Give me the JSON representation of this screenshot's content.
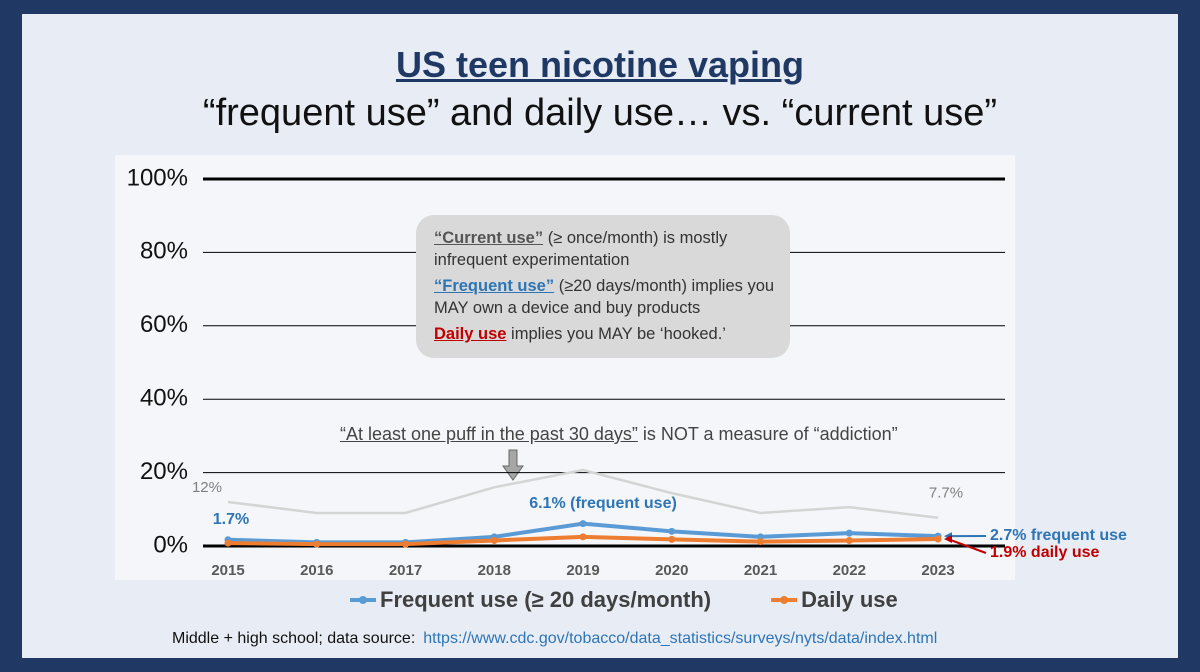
{
  "chart_data": {
    "type": "line",
    "title": "US teen nicotine vaping",
    "subtitle": "“frequent use” and daily use… vs. “current use”",
    "categories": [
      "2015",
      "2016",
      "2017",
      "2018",
      "2019",
      "2020",
      "2021",
      "2022",
      "2023"
    ],
    "series": [
      {
        "color": "#d4d4d4",
        "values": [
          12,
          9,
          9,
          16,
          20.7,
          14.4,
          9,
          10.6,
          7.7
        ],
        "value_labels": [
          "12%",
          null,
          null,
          null,
          null,
          null,
          null,
          null,
          "7.7%"
        ]
      },
      {
        "name": "Frequent use (≥ 20 days/month)",
        "color": "#5b9bd5",
        "values": [
          1.7,
          1,
          1,
          2.5,
          6.1,
          4,
          2.5,
          3.5,
          2.7
        ],
        "value_labels": [
          "1.7%",
          null,
          null,
          null,
          "6.1% (frequent use)",
          null,
          null,
          null,
          "2.7% frequent use"
        ]
      },
      {
        "name": "Daily use",
        "color": "#ed7d31",
        "values": [
          0.8,
          0.5,
          0.5,
          1.5,
          2.5,
          1.8,
          1.2,
          1.5,
          1.9
        ],
        "value_labels": [
          null,
          null,
          null,
          null,
          null,
          null,
          null,
          null,
          "1.9% daily use"
        ]
      }
    ],
    "ylim": [
      0,
      100
    ],
    "yticks": [
      {
        "value": 0,
        "label": "0%"
      },
      {
        "value": 20,
        "label": "20%"
      },
      {
        "value": 40,
        "label": "40%"
      },
      {
        "value": 60,
        "label": "60%"
      },
      {
        "value": 80,
        "label": "80%"
      },
      {
        "value": 100,
        "label": "100%"
      }
    ],
    "grid": true,
    "legend": "bottom",
    "callout": [
      {
        "em": "“Current use”",
        "rest": " (≥ once/month)  is mostly infrequent experimentation"
      },
      {
        "em": "“Frequent use”",
        "rest": " (≥20 days/month) implies you MAY own a device and buy products"
      },
      {
        "em": "Daily use",
        "rest": " implies you MAY be ‘hooked.’"
      }
    ],
    "note": {
      "em": "“At least one puff in the past 30 days”",
      "rest": " is NOT a measure of “addiction”"
    },
    "source": {
      "text": "Middle + high school; data source:",
      "url": "https://www.cdc.gov/tobacco/data_statistics/surveys/nyts/data/index.html"
    }
  }
}
